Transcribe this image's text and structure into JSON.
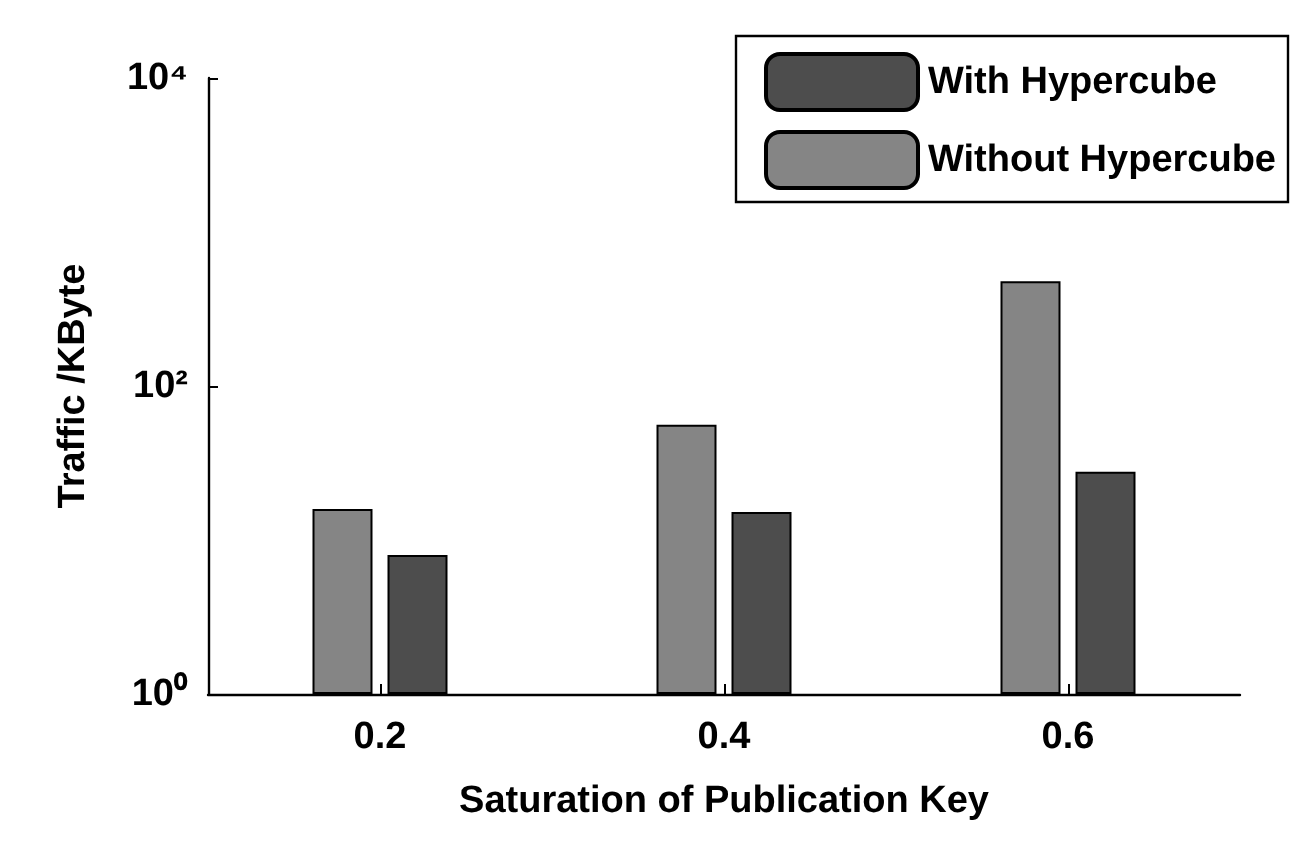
{
  "chart_data": {
    "type": "bar",
    "xlabel": "Saturation of Publication Key",
    "ylabel": "Traffic /KByte",
    "categories": [
      "0.2",
      "0.4",
      "0.6"
    ],
    "series": [
      {
        "name": "With Hypercube",
        "color": "#4d4d4d",
        "values": [
          8.0,
          15.2,
          27.7
        ]
      },
      {
        "name": "Without Hypercube",
        "color": "#858585",
        "values": [
          15.9,
          56,
          478
        ]
      }
    ],
    "log": "y",
    "ylim": [
      1,
      10000
    ],
    "yticks": [
      {
        "value": 1,
        "label": "10⁰"
      },
      {
        "value": 100,
        "label": "10²"
      },
      {
        "value": 10000,
        "label": "10⁴"
      }
    ],
    "grid": false,
    "legend": "top right"
  }
}
